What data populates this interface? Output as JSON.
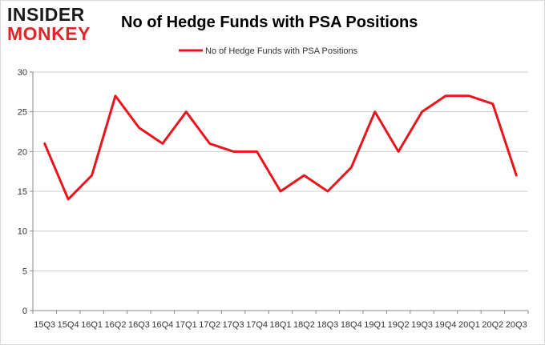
{
  "brand": {
    "logo_top": "INSIDER",
    "logo_bottom": "MONKEY"
  },
  "colors": {
    "series": "#e8161c",
    "grid": "#cccccc",
    "axis": "#888888"
  },
  "chart_data": {
    "type": "line",
    "title": "No of Hedge Funds with PSA Positions",
    "xlabel": "",
    "ylabel": "",
    "ylim": [
      0,
      30
    ],
    "yticks": [
      0,
      5,
      10,
      15,
      20,
      25,
      30
    ],
    "grid": true,
    "legend_position": "top-center",
    "categories": [
      "15Q3",
      "15Q4",
      "16Q1",
      "16Q2",
      "16Q3",
      "16Q4",
      "17Q1",
      "17Q2",
      "17Q3",
      "17Q4",
      "18Q1",
      "18Q2",
      "18Q3",
      "18Q4",
      "19Q1",
      "19Q2",
      "19Q3",
      "19Q4",
      "20Q1",
      "20Q2",
      "20Q3"
    ],
    "series": [
      {
        "name": "No of Hedge Funds with PSA Positions",
        "values": [
          21,
          14,
          17,
          27,
          23,
          21,
          25,
          21,
          20,
          20,
          15,
          17,
          15,
          18,
          25,
          20,
          25,
          27,
          27,
          26,
          17
        ]
      }
    ]
  }
}
